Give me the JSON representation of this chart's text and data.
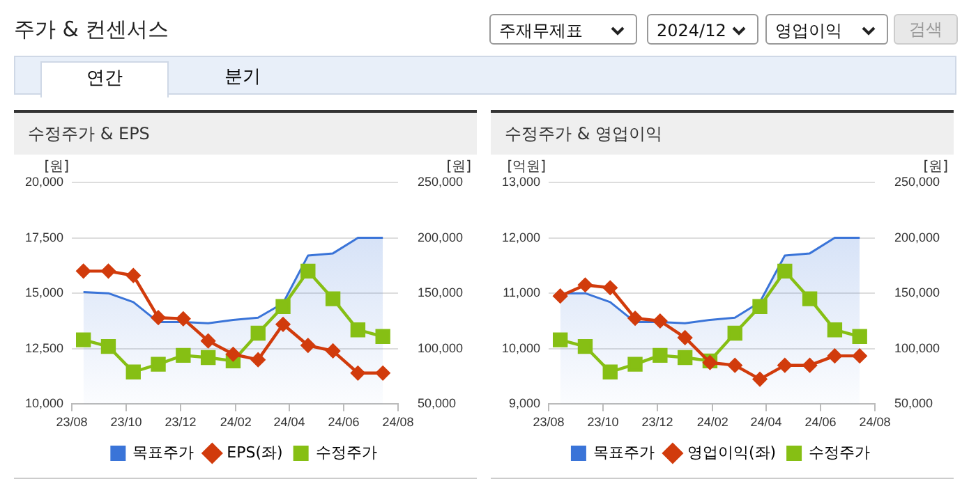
{
  "chart_data": [
    {
      "type": "other",
      "title": "주가 & 컨센서스",
      "annotations": [
        "주재무제표",
        "2024/12",
        "영업이익",
        "검색",
        "연간",
        "분기"
      ]
    },
    {
      "type": "line",
      "title": "수정주가 & EPS",
      "ylabel": "[원]",
      "y2label": "[원]",
      "x": [
        "2023-08-14",
        "2023-09-11",
        "2023-10-09",
        "2023-11-06",
        "2023-12-04",
        "2024-01-01",
        "2024-01-29",
        "2024-02-26",
        "2024-03-25",
        "2024-04-22",
        "2024-05-20",
        "2024-06-17",
        "2024-07-15"
      ],
      "series": [
        {
          "name": "목표주가",
          "type": "area",
          "axis": "y2",
          "color": "#3a74d8",
          "marker": "none",
          "values": [
            151000,
            150000,
            142000,
            124000,
            124000,
            123000,
            126000,
            128000,
            141000,
            184000,
            186000,
            200000,
            200000
          ]
        },
        {
          "name": "EPS(좌)",
          "type": "line",
          "axis": "y",
          "color": "#d13b0c",
          "marker": "diamond",
          "values": [
            16000,
            16000,
            15800,
            13900,
            13850,
            12850,
            12250,
            12000,
            13600,
            12650,
            12400,
            11400,
            11400
          ]
        },
        {
          "name": "수정주가",
          "type": "line",
          "axis": "y2",
          "color": "#86bf14",
          "marker": "square",
          "values": [
            108000,
            102000,
            79000,
            86000,
            94000,
            92000,
            89000,
            114000,
            138000,
            170000,
            145000,
            117000,
            111000
          ]
        }
      ],
      "xlim": [
        "2023-08-01",
        "2024-08-01"
      ],
      "xticks": [
        {
          "value": "2023-08-01",
          "label": "23/08"
        },
        {
          "value": "2023-10-01",
          "label": "23/10"
        },
        {
          "value": "2023-12-01",
          "label": "23/12"
        },
        {
          "value": "2024-02-01",
          "label": "24/02"
        },
        {
          "value": "2024-04-01",
          "label": "24/04"
        },
        {
          "value": "2024-06-01",
          "label": "24/06"
        },
        {
          "value": "2024-08-01",
          "label": "24/08"
        }
      ],
      "ylim": [
        10000,
        20000
      ],
      "yticks": [
        {
          "value": 10000,
          "label": "10,000"
        },
        {
          "value": 12500,
          "label": "12,500"
        },
        {
          "value": 15000,
          "label": "15,000"
        },
        {
          "value": 17500,
          "label": "17,500"
        },
        {
          "value": 20000,
          "label": "20,000"
        }
      ],
      "y2lim": [
        50000,
        250000
      ],
      "y2ticks": [
        {
          "value": 50000,
          "label": "50,000"
        },
        {
          "value": 100000,
          "label": "100,000"
        },
        {
          "value": 150000,
          "label": "150,000"
        },
        {
          "value": 200000,
          "label": "200,000"
        },
        {
          "value": 250000,
          "label": "250,000"
        }
      ],
      "grid": "y",
      "legend": "bottom"
    },
    {
      "type": "line",
      "title": "수정주가 & 영업이익",
      "ylabel": "[억원]",
      "y2label": "[원]",
      "x": [
        "2023-08-14",
        "2023-09-11",
        "2023-10-09",
        "2023-11-06",
        "2023-12-04",
        "2024-01-01",
        "2024-01-29",
        "2024-02-26",
        "2024-03-25",
        "2024-04-22",
        "2024-05-20",
        "2024-06-17",
        "2024-07-15"
      ],
      "series": [
        {
          "name": "목표주가",
          "type": "area",
          "axis": "y2",
          "color": "#3a74d8",
          "marker": "none",
          "values": [
            150000,
            150000,
            142000,
            124000,
            124000,
            123000,
            126000,
            128000,
            142000,
            184000,
            186000,
            200000,
            200000
          ]
        },
        {
          "name": "영업이익(좌)",
          "type": "line",
          "axis": "y",
          "color": "#d13b0c",
          "marker": "diamond",
          "values": [
            10950,
            11150,
            11100,
            10550,
            10500,
            10200,
            9750,
            9700,
            9450,
            9700,
            9700,
            9870,
            9870
          ]
        },
        {
          "name": "수정주가",
          "type": "line",
          "axis": "y2",
          "color": "#86bf14",
          "marker": "square",
          "values": [
            108000,
            102000,
            79000,
            86000,
            94000,
            92000,
            89000,
            114000,
            138000,
            170000,
            145000,
            117000,
            111000
          ]
        }
      ],
      "xlim": [
        "2023-08-01",
        "2024-08-01"
      ],
      "xticks": [
        {
          "value": "2023-08-01",
          "label": "23/08"
        },
        {
          "value": "2023-10-01",
          "label": "23/10"
        },
        {
          "value": "2023-12-01",
          "label": "23/12"
        },
        {
          "value": "2024-02-01",
          "label": "24/02"
        },
        {
          "value": "2024-04-01",
          "label": "24/04"
        },
        {
          "value": "2024-06-01",
          "label": "24/06"
        },
        {
          "value": "2024-08-01",
          "label": "24/08"
        }
      ],
      "ylim": [
        9000,
        13000
      ],
      "yticks": [
        {
          "value": 9000,
          "label": "9,000"
        },
        {
          "value": 10000,
          "label": "10,000"
        },
        {
          "value": 11000,
          "label": "11,000"
        },
        {
          "value": 12000,
          "label": "12,000"
        },
        {
          "value": 13000,
          "label": "13,000"
        }
      ],
      "y2lim": [
        50000,
        250000
      ],
      "y2ticks": [
        {
          "value": 50000,
          "label": "50,000"
        },
        {
          "value": 100000,
          "label": "100,000"
        },
        {
          "value": 150000,
          "label": "150,000"
        },
        {
          "value": 200000,
          "label": "200,000"
        },
        {
          "value": 250000,
          "label": "250,000"
        }
      ],
      "grid": "y",
      "legend": "bottom"
    }
  ]
}
